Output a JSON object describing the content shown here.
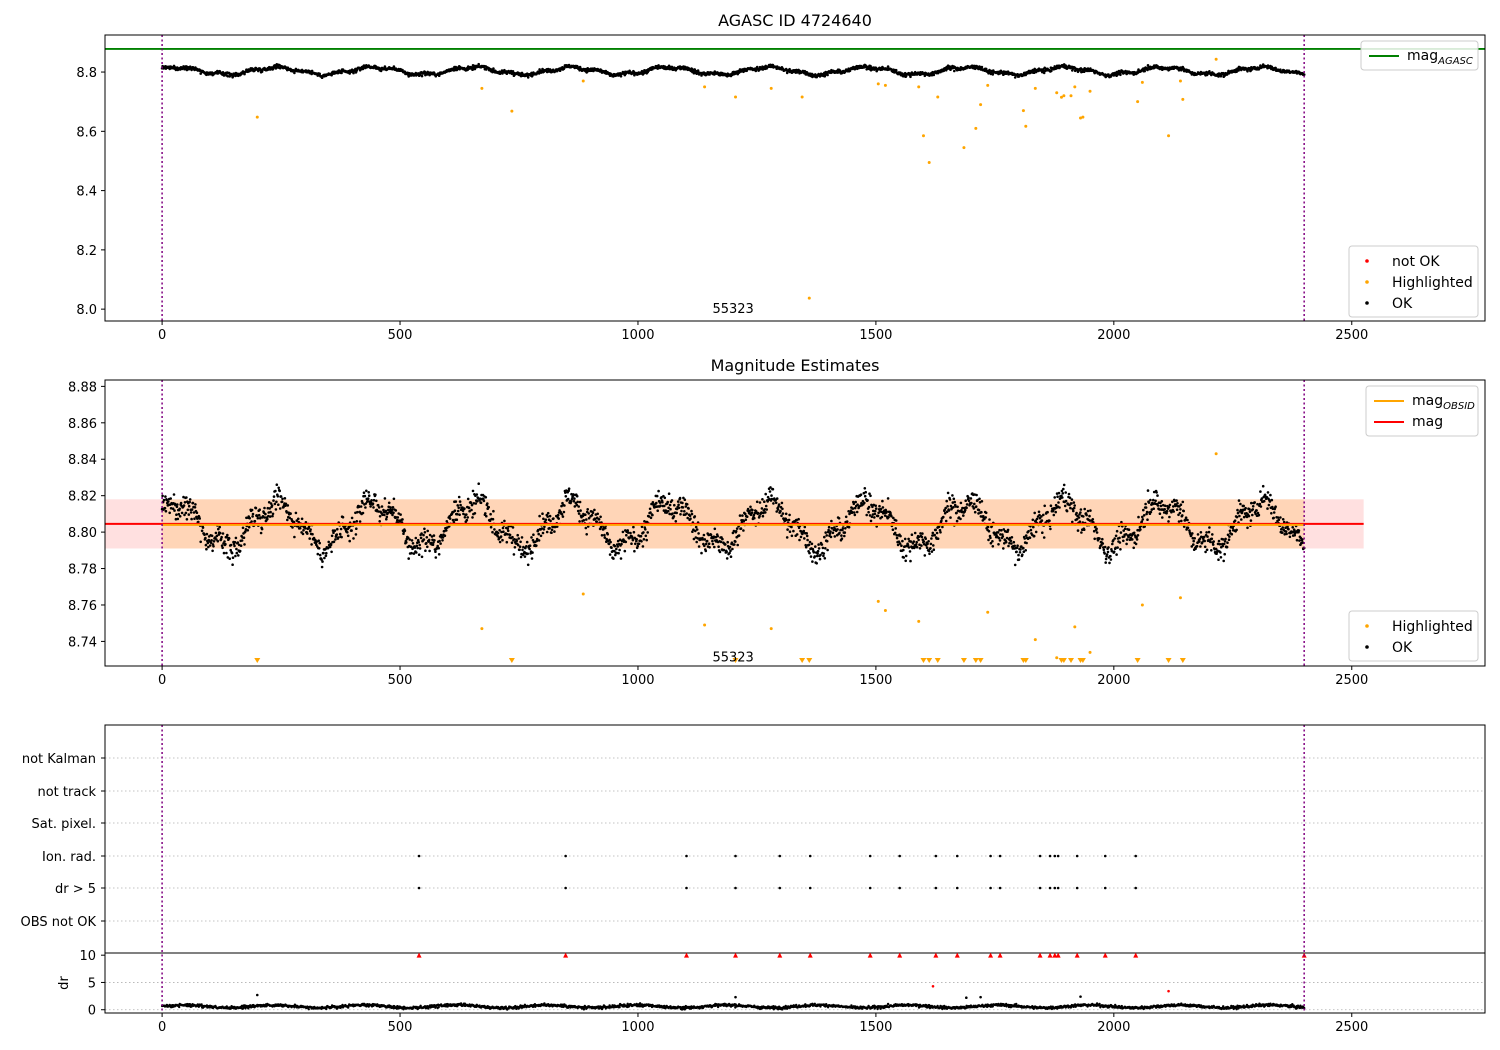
{
  "chart_data": [
    {
      "type": "scatter",
      "title": "AGASC ID 4724640",
      "xlim": [
        -120,
        2780
      ],
      "ylim": [
        7.96,
        8.925
      ],
      "xticks": [
        0,
        500,
        1000,
        1500,
        2000,
        2500
      ],
      "yticks": [
        8.0,
        8.2,
        8.4,
        8.6,
        8.8
      ],
      "ytick_labels": [
        "8.0",
        "8.2",
        "8.4",
        "8.6",
        "8.8"
      ],
      "mag_agasc": 8.878,
      "obs_boundaries": [
        0,
        2400
      ],
      "obsid_label": {
        "text": "55323",
        "x": 1200,
        "y": 8.0
      },
      "legend_upper": [
        {
          "label": "mag",
          "sub": "AGASC",
          "color": "#008000"
        }
      ],
      "legend_lower": [
        {
          "label": "not OK",
          "color": "#ff0000"
        },
        {
          "label": "Highlighted",
          "color": "#ffa500"
        },
        {
          "label": "OK",
          "color": "#000000"
        }
      ],
      "highlighted": [
        [
          200,
          8.648
        ],
        [
          672,
          8.745
        ],
        [
          735,
          8.668
        ],
        [
          885,
          8.77
        ],
        [
          1140,
          8.75
        ],
        [
          1205,
          8.716
        ],
        [
          1280,
          8.745
        ],
        [
          1345,
          8.716
        ],
        [
          1360,
          8.037
        ],
        [
          1505,
          8.76
        ],
        [
          1520,
          8.755
        ],
        [
          1590,
          8.75
        ],
        [
          1600,
          8.585
        ],
        [
          1612,
          8.495
        ],
        [
          1630,
          8.716
        ],
        [
          1685,
          8.545
        ],
        [
          1710,
          8.61
        ],
        [
          1720,
          8.69
        ],
        [
          1735,
          8.755
        ],
        [
          1810,
          8.67
        ],
        [
          1815,
          8.617
        ],
        [
          1835,
          8.745
        ],
        [
          1880,
          8.73
        ],
        [
          1890,
          8.715
        ],
        [
          1895,
          8.72
        ],
        [
          1910,
          8.72
        ],
        [
          1918,
          8.75
        ],
        [
          1930,
          8.645
        ],
        [
          1935,
          8.648
        ],
        [
          1950,
          8.735
        ],
        [
          2050,
          8.7
        ],
        [
          2060,
          8.765
        ],
        [
          2115,
          8.585
        ],
        [
          2140,
          8.77
        ],
        [
          2145,
          8.708
        ],
        [
          2215,
          8.843
        ]
      ],
      "not_ok": [],
      "ok_series": {
        "n_points": 2400,
        "x_range": [
          0,
          2400
        ],
        "mean": 8.804,
        "y_range": [
          8.77,
          8.84
        ]
      }
    },
    {
      "type": "scatter",
      "title": "Magnitude Estimates",
      "xlim": [
        -120,
        2780
      ],
      "ylim": [
        8.7265,
        8.8835
      ],
      "xticks": [
        0,
        500,
        1000,
        1500,
        2000,
        2500
      ],
      "yticks": [
        8.74,
        8.76,
        8.78,
        8.8,
        8.82,
        8.84,
        8.86,
        8.88
      ],
      "ytick_labels": [
        "8.74",
        "8.76",
        "8.78",
        "8.80",
        "8.82",
        "8.84",
        "8.86",
        "8.88"
      ],
      "mag": 8.8045,
      "mag_band": [
        8.791,
        8.818
      ],
      "mag_obsid": 8.804,
      "mag_obsid_band": [
        8.791,
        8.818
      ],
      "mag_obsid_xrange": [
        0,
        2400
      ],
      "obs_boundaries": [
        0,
        2400
      ],
      "obsid_label": {
        "text": "55323",
        "x": 1200,
        "y": 8.728
      },
      "legend_upper": [
        {
          "label": "mag",
          "sub": "OBSID",
          "color": "#ffa500"
        },
        {
          "label": "mag",
          "sub": "",
          "color": "#ff0000"
        }
      ],
      "legend_lower": [
        {
          "label": "Highlighted",
          "color": "#ffa500"
        },
        {
          "label": "OK",
          "color": "#000000"
        }
      ],
      "highlighted": [
        [
          672,
          8.747
        ],
        [
          885,
          8.766
        ],
        [
          1140,
          8.749
        ],
        [
          1280,
          8.747
        ],
        [
          1505,
          8.762
        ],
        [
          1520,
          8.757
        ],
        [
          1590,
          8.751
        ],
        [
          1735,
          8.756
        ],
        [
          1835,
          8.741
        ],
        [
          1880,
          8.731
        ],
        [
          1918,
          8.748
        ],
        [
          1950,
          8.734
        ],
        [
          2060,
          8.76
        ],
        [
          2140,
          8.764
        ],
        [
          2215,
          8.843
        ]
      ],
      "clipped_low": [
        200,
        735,
        1205,
        1345,
        1360,
        1600,
        1612,
        1630,
        1685,
        1710,
        1720,
        1810,
        1815,
        1890,
        1895,
        1910,
        1930,
        1935,
        2050,
        2115,
        2145
      ],
      "ok_series": {
        "n_points": 2400,
        "x_range": [
          0,
          2400
        ],
        "mean": 8.804,
        "y_range": [
          8.77,
          8.84
        ]
      }
    },
    {
      "type": "scatter",
      "title": "",
      "xlim": [
        -120,
        2780
      ],
      "flag_labels": [
        "not Kalman",
        "not track",
        "Sat. pixel.",
        "Ion. rad.",
        "dr > 5",
        "OBS not OK"
      ],
      "flag_x": {
        "Ion. rad.": [
          540,
          848,
          1102,
          1205,
          1298,
          1362,
          1488,
          1550,
          1626,
          1671,
          1741,
          1761,
          1845,
          1866,
          1876,
          1883,
          1923,
          1982,
          2046
        ],
        "dr > 5": [
          540,
          848,
          1102,
          1205,
          1298,
          1362,
          1488,
          1550,
          1626,
          1671,
          1741,
          1761,
          1845,
          1866,
          1876,
          1883,
          1923,
          1982,
          2046
        ]
      },
      "ylabel": "dr",
      "dr_ylim": [
        -0.6,
        10.4
      ],
      "dr_yticks": [
        0,
        5,
        10
      ],
      "dr_capped_x": [
        540,
        848,
        1102,
        1205,
        1298,
        1362,
        1488,
        1550,
        1626,
        1671,
        1741,
        1761,
        1845,
        1866,
        1876,
        1883,
        1923,
        1982,
        2046,
        2400
      ],
      "dr_outliers": [
        [
          200,
          2.7
        ],
        [
          1205,
          2.3
        ],
        [
          1620,
          4.3
        ],
        [
          1690,
          2.2
        ],
        [
          1720,
          2.3
        ],
        [
          1930,
          2.4
        ],
        [
          2115,
          3.4
        ]
      ],
      "dr_series": {
        "n_points": 2400,
        "x_range": [
          0,
          2400
        ],
        "mean": 0.6
      },
      "xticks": [
        0,
        500,
        1000,
        1500,
        2000,
        2500
      ]
    }
  ]
}
